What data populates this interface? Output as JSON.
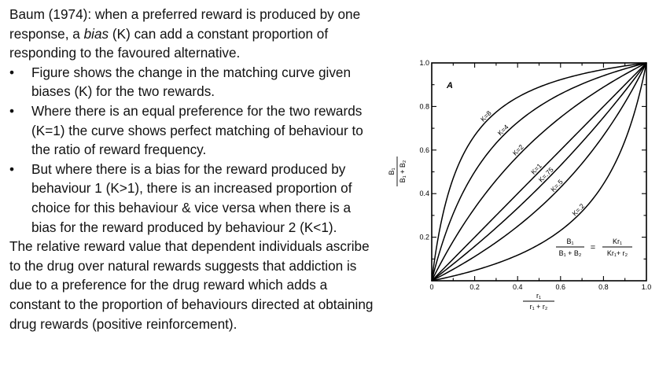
{
  "text": {
    "intro_pre": "Baum (1974): when a preferred reward is produced by one response, a ",
    "intro_em": "bias",
    "intro_post": " (K) can add a constant proportion of responding to the favoured alternative.",
    "bullet_glyph": "•",
    "bullets": [
      "Figure shows the change in the matching curve given biases (K) for the two rewards.",
      "Where there is an equal preference for the two rewards (K=1) the curve shows perfect matching of behaviour to the ratio of reward frequency.",
      "But where there is a bias for the reward produced by behaviour 1 (K>1), there is an increased proportion of choice for this behaviour & vice versa when there is a bias for the reward produced by behaviour 2 (K<1)."
    ],
    "conclusion": "The relative reward value that dependent individuals ascribe to the drug over natural rewards suggests that addiction is due to a preference for the drug reward which adds a constant to the proportion of behaviours directed at obtaining drug rewards (positive reinforcement)."
  },
  "figure": {
    "panel_label": "A",
    "x_ticks": [
      "0",
      "0.2",
      "0.4",
      "0.6",
      "0.8",
      "1.0"
    ],
    "y_ticks": [
      "0.2",
      "0.4",
      "0.6",
      "0.8",
      "1.0"
    ],
    "y_axis_label": {
      "num": "B₁",
      "den": "B₁ + B₂"
    },
    "x_axis_label": {
      "num": "r₁",
      "den": "r₁ + r₂"
    },
    "equation": {
      "lhs_num": "B₁",
      "lhs_den": "B₁ + B₂",
      "eq": "=",
      "rhs_num": "Kr₁",
      "rhs_den": "Kr₁+ r₂"
    },
    "curves": [
      {
        "label": "K=8",
        "k": 8
      },
      {
        "label": "K=4",
        "k": 4
      },
      {
        "label": "K=2",
        "k": 2
      },
      {
        "label": "K=1",
        "k": 1
      },
      {
        "label": "K=.75",
        "k": 0.75
      },
      {
        "label": "K=.5",
        "k": 0.5
      },
      {
        "label": "K=.2",
        "k": 0.2
      }
    ]
  },
  "chart_data": {
    "type": "line",
    "x": [
      0,
      0.1,
      0.2,
      0.3,
      0.4,
      0.5,
      0.6,
      0.7,
      0.8,
      0.9,
      1.0
    ],
    "xlim": [
      0,
      1.0
    ],
    "ylim": [
      0,
      1.0
    ],
    "xlabel": "r₁ / (r₁ + r₂)",
    "ylabel": "B₁ / (B₁ + B₂)",
    "series": [
      {
        "name": "K=8",
        "values": [
          0,
          0.47,
          0.667,
          0.774,
          0.842,
          0.889,
          0.923,
          0.949,
          0.97,
          0.986,
          1.0
        ]
      },
      {
        "name": "K=4",
        "values": [
          0,
          0.308,
          0.5,
          0.632,
          0.727,
          0.8,
          0.857,
          0.903,
          0.941,
          0.973,
          1.0
        ]
      },
      {
        "name": "K=2",
        "values": [
          0,
          0.182,
          0.333,
          0.462,
          0.571,
          0.667,
          0.75,
          0.824,
          0.889,
          0.947,
          1.0
        ]
      },
      {
        "name": "K=1",
        "values": [
          0,
          0.1,
          0.2,
          0.3,
          0.4,
          0.5,
          0.6,
          0.7,
          0.8,
          0.9,
          1.0
        ]
      },
      {
        "name": "K=.75",
        "values": [
          0,
          0.077,
          0.158,
          0.243,
          0.333,
          0.429,
          0.529,
          0.636,
          0.75,
          0.871,
          1.0
        ]
      },
      {
        "name": "K=.5",
        "values": [
          0,
          0.053,
          0.111,
          0.176,
          0.25,
          0.333,
          0.429,
          0.538,
          0.667,
          0.818,
          1.0
        ]
      },
      {
        "name": "K=.2",
        "values": [
          0,
          0.022,
          0.048,
          0.079,
          0.118,
          0.167,
          0.231,
          0.318,
          0.444,
          0.643,
          1.0
        ]
      }
    ]
  }
}
